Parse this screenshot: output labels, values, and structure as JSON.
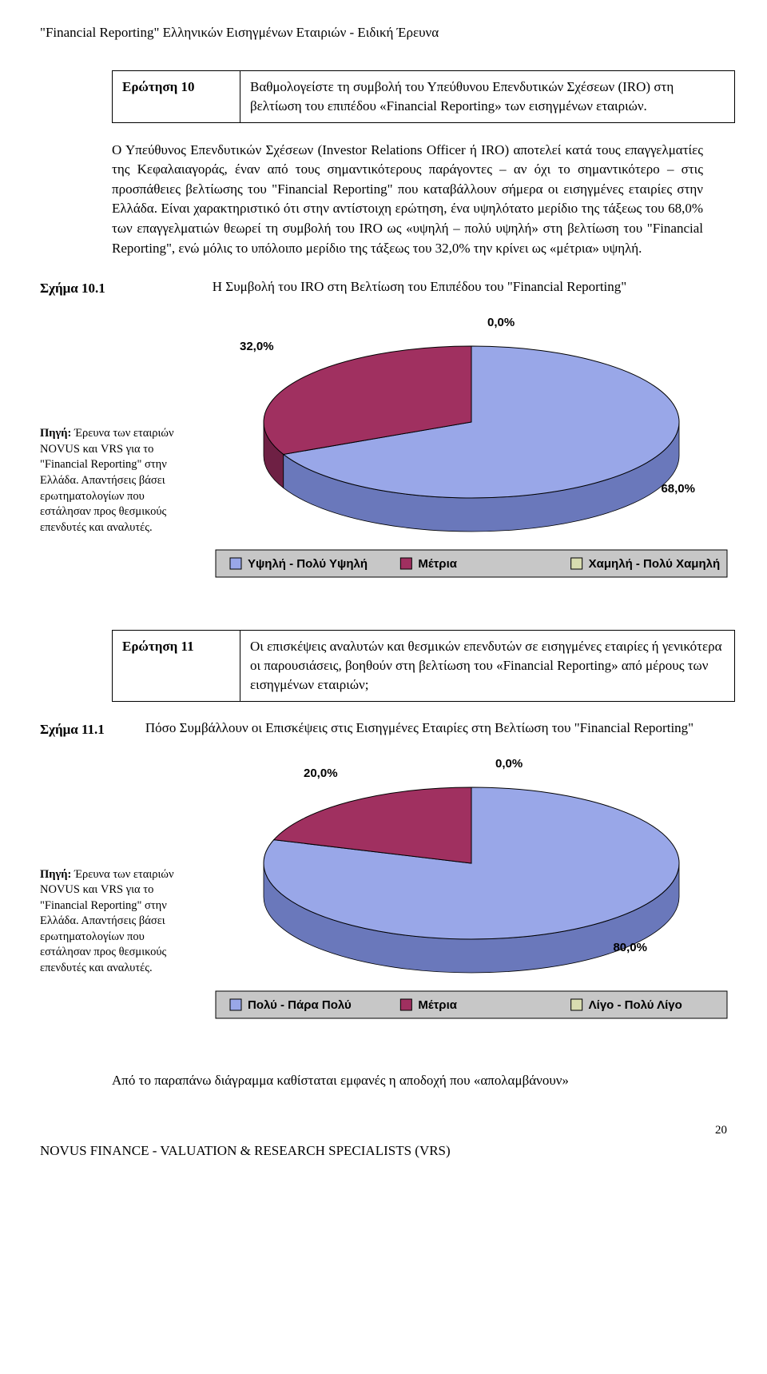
{
  "header": "\"Financial Reporting\" Ελληνικών Εισηγμένων Εταιριών   -   Ειδική Έρευνα",
  "q10": {
    "label": "Ερώτηση 10",
    "text": "Βαθμολογείστε τη συμβολή του Υπεύθυνου Επενδυτικών Σχέσεων (IRO) στη βελτίωση του επιπέδου «Financial Reporting» των εισηγμένων εταιριών."
  },
  "p10": "Ο Υπεύθυνος Επενδυτικών Σχέσεων (Investor Relations Officer ή IRO) αποτελεί κατά τους επαγγελματίες της Κεφαλαιαγοράς, έναν από τους σημαντικότερους παράγοντες – αν όχι το σημαντικότερο – στις προσπάθειες βελτίωσης του \"Financial Reporting\" που καταβάλλουν σήμερα οι εισηγμένες εταιρίες στην Ελλάδα. Είναι χαρακτηριστικό ότι στην αντίστοιχη ερώτηση, ένα υψηλότατο μερίδιο της τάξεως του 68,0% των επαγγελματιών θεωρεί τη συμβολή του IRO ως «υψηλή – πολύ υψηλή» στη βελτίωση του \"Financial Reporting\", ενώ μόλις το υπόλοιπο μερίδιο της τάξεως του 32,0% την κρίνει ως «μέτρια» υψηλή.",
  "fig10": {
    "label": "Σχήμα 10.1",
    "title": "Η Συμβολή του IRO στη Βελτίωση του Επιπέδου του \"Financial Reporting\""
  },
  "chart10": {
    "type": "pie3d",
    "slices": [
      {
        "label": "Υψηλή - Πολύ Υψηλή",
        "value": 68.0,
        "display": "68,0%",
        "color": "#99a7e8",
        "side_color": "#6a78bb"
      },
      {
        "label": "Μέτρια",
        "value": 32.0,
        "display": "32,0%",
        "color": "#a03060",
        "side_color": "#6e2044"
      },
      {
        "label": "Χαμηλή - Πολύ Χαμηλή",
        "value": 0.0,
        "display": "0,0%",
        "color": "#d8dcb0",
        "side_color": "#b0b488"
      }
    ],
    "legend_bg": "#c7c7c7",
    "legend_border": "#000000",
    "label_fontsize": 15,
    "label_weight": "bold"
  },
  "source10": {
    "bold": "Πηγή:",
    "text": " Έρευνα των εταιριών NOVUS και VRS για το \"Financial Reporting\" στην Ελλάδα. Απαντήσεις βάσει ερωτηματολογίων που εστάλησαν προς θεσμικούς επενδυτές και αναλυτές."
  },
  "q11": {
    "label": "Ερώτηση 11",
    "text": "Οι επισκέψεις αναλυτών και θεσμικών επενδυτών σε εισηγμένες εταιρίες ή γενικότερα οι παρουσιάσεις, βοηθούν στη βελτίωση του «Financial Reporting» από μέρους των εισηγμένων εταιριών;"
  },
  "fig11": {
    "label": "Σχήμα 11.1",
    "title": "Πόσο Συμβάλλουν οι Επισκέψεις στις Εισηγμένες Εταιρίες στη Βελτίωση του \"Financial Reporting\""
  },
  "chart11": {
    "type": "pie3d",
    "slices": [
      {
        "label": "Πολύ - Πάρα Πολύ",
        "value": 80.0,
        "display": "80,0%",
        "color": "#99a7e8",
        "side_color": "#6a78bb"
      },
      {
        "label": "Μέτρια",
        "value": 20.0,
        "display": "20,0%",
        "color": "#a03060",
        "side_color": "#6e2044"
      },
      {
        "label": "Λίγο - Πολύ Λίγο",
        "value": 0.0,
        "display": "0,0%",
        "color": "#d8dcb0",
        "side_color": "#b0b488"
      }
    ],
    "legend_bg": "#c7c7c7",
    "legend_border": "#000000",
    "label_fontsize": 15,
    "label_weight": "bold"
  },
  "source11": {
    "bold": "Πηγή:",
    "text": " Έρευνα των εταιριών NOVUS και VRS για το \"Financial Reporting\" στην Ελλάδα. Απαντήσεις βάσει ερωτηματολογίων που εστάλησαν προς θεσμικούς επενδυτές και αναλυτές."
  },
  "p_after11": "Από το παραπάνω διάγραμμα καθίσταται εμφανές η αποδοχή που «απολαμβάνουν»",
  "footer": "NOVUS FINANCE   -   VALUATION & RESEARCH SPECIALISTS (VRS)",
  "page_number": "20"
}
